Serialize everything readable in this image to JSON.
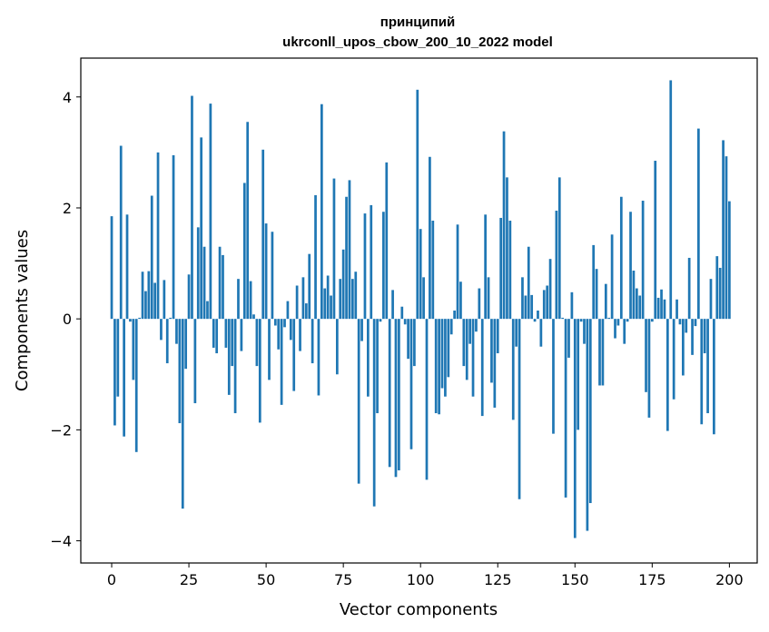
{
  "chart_data": {
    "type": "bar",
    "title_lines": [
      "принципий",
      "ukrconll_upos_cbow_200_10_2022 model"
    ],
    "xlabel": "Vector components",
    "ylabel": "Components values",
    "xlim": [
      -10,
      209
    ],
    "ylim": [
      -4.4,
      4.7
    ],
    "x_ticks": [
      0,
      25,
      50,
      75,
      100,
      125,
      150,
      175,
      200
    ],
    "y_ticks": [
      -4,
      -2,
      0,
      2,
      4
    ],
    "y_tick_labels": [
      "−4",
      "−2",
      "0",
      "2",
      "4"
    ],
    "bar_color": "#1f77b4",
    "grid": false,
    "values": [
      1.85,
      -1.92,
      -1.4,
      3.12,
      -2.12,
      1.88,
      -0.05,
      -1.1,
      -2.4,
      0.02,
      0.85,
      0.5,
      0.86,
      2.22,
      0.65,
      3.0,
      -0.38,
      0.7,
      -0.8,
      0.02,
      2.95,
      -0.45,
      -1.88,
      -3.42,
      -0.9,
      0.8,
      4.02,
      -1.52,
      1.65,
      3.27,
      1.3,
      0.32,
      3.88,
      -0.52,
      -0.62,
      1.3,
      1.15,
      -0.52,
      -1.37,
      -0.85,
      -1.7,
      0.72,
      -0.58,
      2.45,
      3.55,
      0.68,
      0.08,
      -0.85,
      -1.87,
      3.05,
      1.72,
      -1.1,
      1.57,
      -0.12,
      -0.55,
      -1.55,
      -0.15,
      0.32,
      -0.38,
      -1.3,
      0.6,
      -0.58,
      0.75,
      0.28,
      1.17,
      -0.8,
      2.23,
      -1.38,
      3.87,
      0.55,
      0.78,
      0.42,
      2.53,
      -1.0,
      0.72,
      1.25,
      2.2,
      2.5,
      0.72,
      0.85,
      -2.97,
      -0.4,
      1.9,
      -1.4,
      2.05,
      -3.38,
      -1.7,
      -0.05,
      1.93,
      2.82,
      -2.67,
      0.52,
      -2.85,
      -2.73,
      0.22,
      -0.1,
      -0.72,
      -2.35,
      -0.85,
      4.13,
      1.62,
      0.75,
      -2.9,
      2.92,
      1.77,
      -1.7,
      -1.72,
      -1.25,
      -1.4,
      -1.05,
      -0.28,
      0.15,
      1.7,
      0.67,
      -0.85,
      -1.1,
      -0.45,
      -1.4,
      -0.23,
      0.55,
      -1.75,
      1.88,
      0.75,
      -1.15,
      -1.6,
      -0.62,
      1.82,
      3.38,
      2.55,
      1.77,
      -1.82,
      -0.5,
      -3.25,
      0.75,
      0.42,
      1.3,
      0.43,
      -0.05,
      0.15,
      -0.5,
      0.52,
      0.6,
      1.08,
      -2.07,
      1.95,
      2.55,
      0.02,
      -3.22,
      -0.7,
      0.48,
      -3.95,
      -2.0,
      -0.05,
      -0.45,
      -3.82,
      -3.32,
      1.33,
      0.9,
      -1.2,
      -1.2,
      0.63,
      0.02,
      1.52,
      -0.35,
      -0.12,
      2.2,
      -0.45,
      -0.05,
      1.93,
      0.87,
      0.55,
      0.42,
      2.13,
      -1.32,
      -1.78,
      -0.05,
      2.85,
      0.38,
      0.53,
      0.35,
      -2.02,
      4.3,
      -1.45,
      0.35,
      -0.1,
      -1.02,
      -0.25,
      1.1,
      -0.65,
      -0.13,
      3.43,
      -1.9,
      -0.62,
      -1.7,
      0.72,
      -2.08,
      1.13,
      0.92,
      3.22,
      2.93,
      2.12
    ]
  }
}
